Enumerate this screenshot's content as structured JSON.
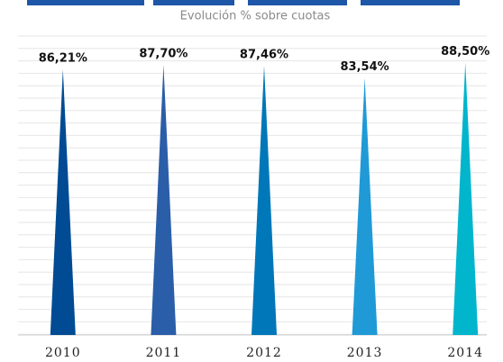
{
  "chart_data": {
    "type": "spike",
    "subtitle": "Evolución % sobre cuotas",
    "categories": [
      "2010",
      "2011",
      "2012",
      "2013",
      "2014"
    ],
    "values": [
      86.21,
      87.7,
      87.46,
      83.54,
      88.5
    ],
    "value_labels": [
      "86,21%",
      "87,70%",
      "87,46%",
      "83,54%",
      "88,50%"
    ],
    "colors": [
      "#004b93",
      "#2b5ea8",
      "#0077b8",
      "#1f9ad6",
      "#00b5cc"
    ],
    "ylim": [
      0,
      100
    ]
  }
}
